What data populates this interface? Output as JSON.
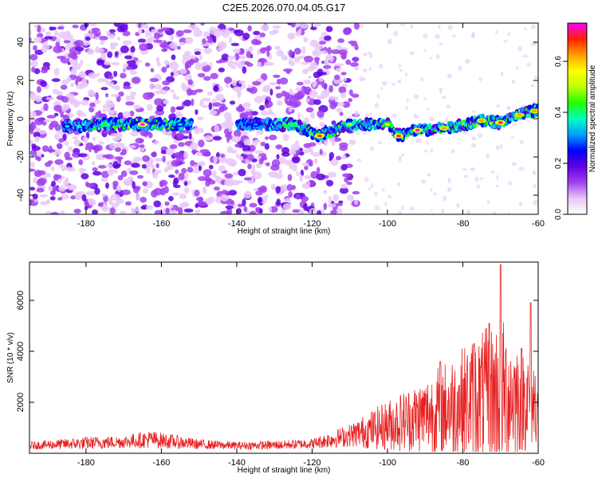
{
  "figure_title": "C2E5.2026.070.04.05.G17",
  "chart_data": [
    {
      "type": "heatmap",
      "title": "C2E5.2026.070.04.05.G17",
      "xlabel": "Height of straight line (km)",
      "ylabel": "Frequency (Hz)",
      "xlim": [
        -195,
        -60
      ],
      "ylim": [
        -50,
        50
      ],
      "xticks": [
        -180,
        -160,
        -140,
        -120,
        -100,
        -80,
        -60
      ],
      "yticks": [
        -40,
        -20,
        0,
        20,
        40
      ],
      "colorbar": {
        "label": "Normalized spectral amplitude",
        "range": [
          0.0,
          0.75
        ],
        "ticks": [
          0.0,
          0.2,
          0.4,
          0.6
        ],
        "tick_labels": [
          "0.0",
          "0.2",
          "0.4",
          "0.6"
        ],
        "colors": [
          "#ffffff",
          "#e8c8f8",
          "#a040f0",
          "#6000e0",
          "#0000ff",
          "#00a0ff",
          "#00ffc0",
          "#20ff00",
          "#c0ff00",
          "#ffff00",
          "#ffa000",
          "#ff2000",
          "#ff00ff"
        ]
      },
      "signal_track": [
        {
          "x": -185,
          "freq": -4,
          "amp": 0.35
        },
        {
          "x": -175,
          "freq": -3,
          "amp": 0.45
        },
        {
          "x": -165,
          "freq": -3,
          "amp": 0.72
        },
        {
          "x": -155,
          "freq": -3,
          "amp": 0.35
        },
        {
          "x": -135,
          "freq": -3,
          "amp": 0.3
        },
        {
          "x": -125,
          "freq": -3,
          "amp": 0.45
        },
        {
          "x": -118,
          "freq": -9,
          "amp": 0.7
        },
        {
          "x": -110,
          "freq": -3,
          "amp": 0.5
        },
        {
          "x": -100,
          "freq": -3,
          "amp": 0.55
        },
        {
          "x": -97,
          "freq": -9,
          "amp": 0.7
        },
        {
          "x": -92,
          "freq": -6,
          "amp": 0.72
        },
        {
          "x": -85,
          "freq": -5,
          "amp": 0.6
        },
        {
          "x": -75,
          "freq": -1,
          "amp": 0.6
        },
        {
          "x": -70,
          "freq": -2,
          "amp": 0.7
        },
        {
          "x": -65,
          "freq": 2,
          "amp": 0.65
        },
        {
          "x": -61,
          "freq": 4,
          "amp": 0.65
        }
      ],
      "noise_region_x": [
        -195,
        -108
      ]
    },
    {
      "type": "line",
      "xlabel": "Height of straight line (km)",
      "ylabel": "SNR (10 * v/v)",
      "xlim": [
        -195,
        -60
      ],
      "ylim": [
        0,
        7500
      ],
      "xticks": [
        -180,
        -160,
        -140,
        -120,
        -100,
        -80,
        -60
      ],
      "yticks": [
        2000,
        4000,
        6000
      ],
      "color": "#e82020",
      "envelope": [
        {
          "x": -195,
          "mean": 300,
          "spread": 150
        },
        {
          "x": -180,
          "mean": 400,
          "spread": 250
        },
        {
          "x": -170,
          "mean": 450,
          "spread": 250
        },
        {
          "x": -163,
          "mean": 550,
          "spread": 350
        },
        {
          "x": -150,
          "mean": 350,
          "spread": 200
        },
        {
          "x": -140,
          "mean": 300,
          "spread": 150
        },
        {
          "x": -130,
          "mean": 320,
          "spread": 180
        },
        {
          "x": -120,
          "mean": 380,
          "spread": 200
        },
        {
          "x": -110,
          "mean": 700,
          "spread": 450
        },
        {
          "x": -100,
          "mean": 1100,
          "spread": 1000
        },
        {
          "x": -90,
          "mean": 1500,
          "spread": 1500
        },
        {
          "x": -80,
          "mean": 2000,
          "spread": 2200
        },
        {
          "x": -70,
          "mean": 2400,
          "spread": 3000
        },
        {
          "x": -60,
          "mean": 2000,
          "spread": 1600
        }
      ],
      "peaks": [
        {
          "x": -70,
          "value": 7400
        },
        {
          "x": -73,
          "value": 5100
        },
        {
          "x": -62,
          "value": 5900
        },
        {
          "x": -77,
          "value": 4300
        },
        {
          "x": -86,
          "value": 3600
        }
      ]
    }
  ]
}
